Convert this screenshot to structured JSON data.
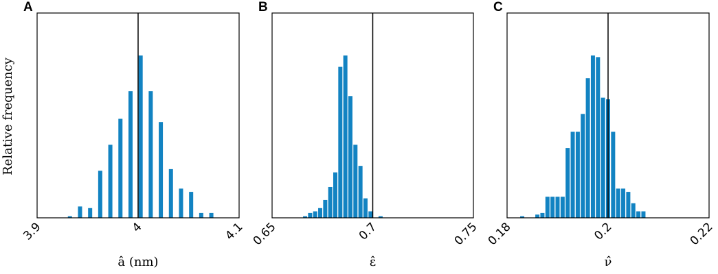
{
  "figure": {
    "ylabel": "Relative frequency"
  },
  "chart_data": [
    {
      "type": "bar",
      "panel": "A",
      "xlabel": "â (nm)",
      "ylabel": "Relative frequency",
      "xlim": [
        3.9,
        4.1
      ],
      "xticks": [
        "3.9",
        "4",
        "4.1"
      ],
      "xtick_values": [
        3.9,
        4.0,
        4.1
      ],
      "ylim": [
        0,
        1
      ],
      "reference_line": 4.0,
      "bar_color": "#1283c2",
      "x": [
        3.9325,
        3.9425,
        3.9525,
        3.9625,
        3.9725,
        3.9825,
        3.9925,
        4.0025,
        4.0125,
        4.0225,
        4.0325,
        4.0425,
        4.0525,
        4.0625,
        4.0725,
        4.0825
      ],
      "values": [
        0.01,
        0.07,
        0.06,
        0.29,
        0.45,
        0.61,
        0.78,
        1.0,
        0.78,
        0.59,
        0.3,
        0.18,
        0.16,
        0.03,
        0.03,
        0.0
      ]
    },
    {
      "type": "bar",
      "panel": "B",
      "xlabel": "ε̂",
      "xlim": [
        0.65,
        0.75
      ],
      "xticks": [
        "0.65",
        "0.7",
        "0.75"
      ],
      "xtick_values": [
        0.65,
        0.7,
        0.75
      ],
      "ylim": [
        0,
        1
      ],
      "reference_line": 0.7,
      "bar_color": "#1283c2",
      "x": [
        0.6589,
        0.6639,
        0.6664,
        0.6689,
        0.6714,
        0.6739,
        0.6764,
        0.6789,
        0.6814,
        0.6839,
        0.6864,
        0.6889,
        0.6914,
        0.6939,
        0.6964,
        0.6989,
        0.7014,
        0.7039,
        0.7064,
        0.7089,
        0.7114,
        0.7139,
        0.7164,
        0.7189,
        0.7214,
        0.7239,
        0.7289
      ],
      "values": [
        0.0,
        0.0,
        0.01,
        0.03,
        0.04,
        0.06,
        0.11,
        0.19,
        0.28,
        0.93,
        1.0,
        0.75,
        0.45,
        0.32,
        0.12,
        0.04,
        0.0,
        0.01,
        0.0,
        0.0,
        0.0,
        0.0,
        0.0,
        0.0,
        0.0,
        0.0,
        0.0
      ]
    },
    {
      "type": "bar",
      "panel": "C",
      "xlabel": "ν̂",
      "xlim": [
        0.18,
        0.22
      ],
      "xticks": [
        "0.18",
        "0.2",
        "0.22"
      ],
      "xtick_values": [
        0.18,
        0.2,
        0.22
      ],
      "ylim": [
        0,
        1
      ],
      "reference_line": 0.2,
      "bar_color": "#1283c2",
      "x": [
        0.183,
        0.185,
        0.186,
        0.187,
        0.188,
        0.189,
        0.19,
        0.191,
        0.192,
        0.193,
        0.194,
        0.195,
        0.196,
        0.197,
        0.198,
        0.199,
        0.2,
        0.201,
        0.202,
        0.203,
        0.204,
        0.205,
        0.206,
        0.207,
        0.208,
        0.209,
        0.21,
        0.211,
        0.212,
        0.213,
        0.214,
        0.215,
        0.216,
        0.217
      ],
      "values": [
        0.01,
        0.0,
        0.02,
        0.03,
        0.13,
        0.13,
        0.13,
        0.13,
        0.43,
        0.53,
        0.53,
        0.64,
        0.86,
        1.0,
        0.99,
        0.74,
        0.73,
        0.53,
        0.18,
        0.18,
        0.16,
        0.09,
        0.04,
        0.04,
        0.0,
        0.0,
        0.0,
        0.0,
        0.0,
        0.0,
        0.0,
        0.0,
        0.0,
        0.0
      ]
    }
  ]
}
